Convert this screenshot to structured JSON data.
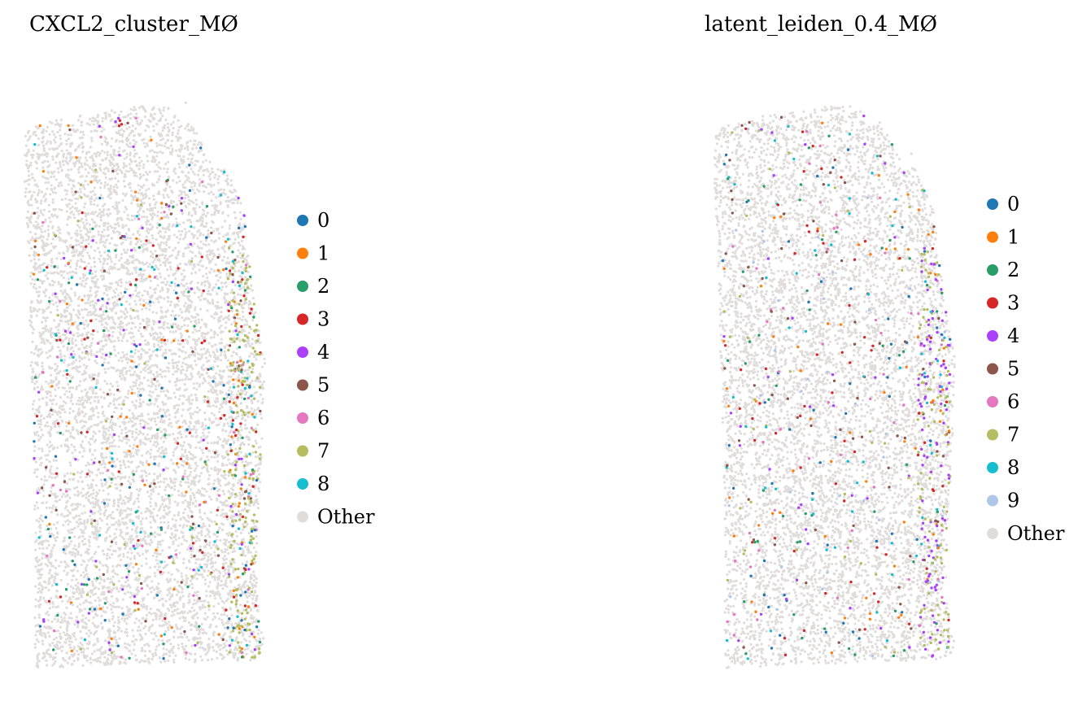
{
  "chart_data": [
    {
      "type": "scatter",
      "title": "CXCL2_cluster_MØ",
      "xlabel": "",
      "ylabel": "",
      "grid": false,
      "legend_position": "right",
      "background_category": "Other",
      "legend": [
        {
          "label": "0",
          "color": "#1f77b4"
        },
        {
          "label": "1",
          "color": "#ff7f0e"
        },
        {
          "label": "2",
          "color": "#279e68"
        },
        {
          "label": "3",
          "color": "#d62728"
        },
        {
          "label": "4",
          "color": "#aa40fc"
        },
        {
          "label": "5",
          "color": "#8c564b"
        },
        {
          "label": "6",
          "color": "#e377c2"
        },
        {
          "label": "7",
          "color": "#b5bd61"
        },
        {
          "label": "8",
          "color": "#17becf"
        },
        {
          "label": "Other",
          "color": "#e0dcdc"
        }
      ]
    },
    {
      "type": "scatter",
      "title": "latent_leiden_0.4_MØ",
      "xlabel": "",
      "ylabel": "",
      "grid": false,
      "legend_position": "right",
      "background_category": "Other",
      "legend": [
        {
          "label": "0",
          "color": "#1f77b4"
        },
        {
          "label": "1",
          "color": "#ff7f0e"
        },
        {
          "label": "2",
          "color": "#279e68"
        },
        {
          "label": "3",
          "color": "#d62728"
        },
        {
          "label": "4",
          "color": "#aa40fc"
        },
        {
          "label": "5",
          "color": "#8c564b"
        },
        {
          "label": "6",
          "color": "#e377c2"
        },
        {
          "label": "7",
          "color": "#b5bd61"
        },
        {
          "label": "8",
          "color": "#17becf"
        },
        {
          "label": "9",
          "color": "#aec7e8"
        },
        {
          "label": "Other",
          "color": "#e0dcdc"
        }
      ]
    }
  ]
}
